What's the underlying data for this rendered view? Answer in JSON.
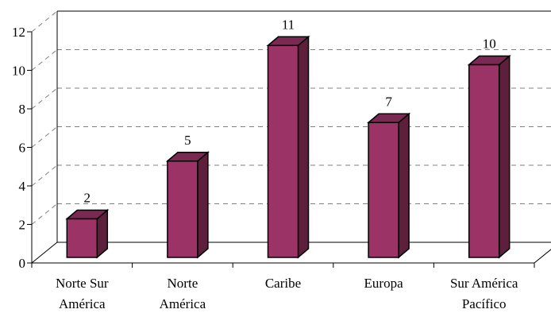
{
  "chart_data": {
    "type": "bar",
    "categories": [
      [
        "Norte Sur",
        "América"
      ],
      [
        "Norte",
        "América"
      ],
      [
        "Caribe"
      ],
      [
        "Europa"
      ],
      [
        "Sur América",
        "Pacífico"
      ]
    ],
    "values": [
      2,
      5,
      11,
      7,
      10
    ],
    "ylim": [
      0,
      12
    ],
    "yticks": [
      0,
      2,
      4,
      6,
      8,
      10,
      12
    ],
    "title": "",
    "xlabel": "",
    "ylabel": "",
    "grid": true,
    "legend": "none",
    "colors": {
      "bar_front": "#9B3366",
      "bar_side": "#5E1F3D",
      "bar_top": "#7A2A52",
      "outline": "#000000",
      "gridline": "#808080"
    }
  }
}
